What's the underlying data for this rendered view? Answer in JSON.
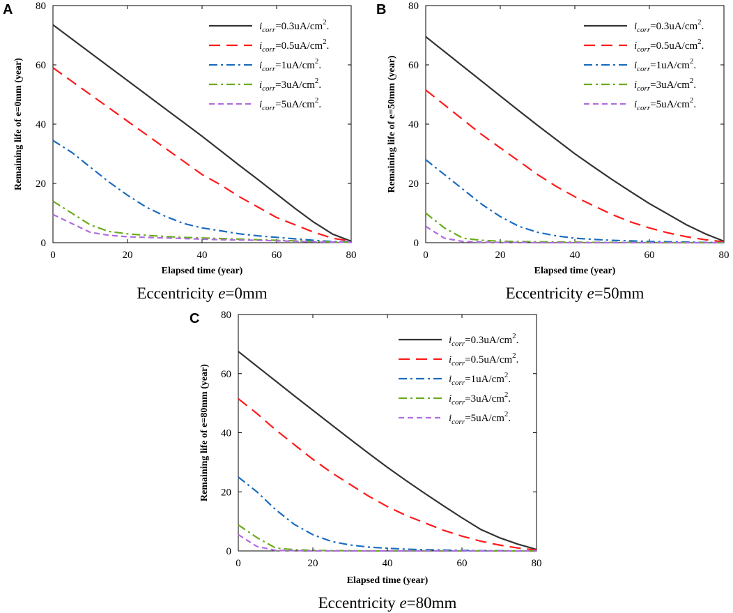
{
  "chart_data": [
    {
      "type": "line",
      "panel": "A",
      "caption_prefix": "Eccentricity ",
      "caption_var": "e",
      "caption_suffix": "=0mm",
      "xlabel": "Elapsed time (year)",
      "ylabel": "Remaining life of e=0mm (year)",
      "xlim": [
        0,
        80
      ],
      "ylim": [
        0,
        80
      ],
      "xticks": [
        "0",
        "20",
        "40",
        "60",
        "80"
      ],
      "yticks": [
        "0",
        "20",
        "40",
        "60",
        "80"
      ],
      "x": [
        0,
        5,
        10,
        15,
        20,
        25,
        30,
        35,
        40,
        45,
        50,
        55,
        60,
        65,
        70,
        75,
        80
      ],
      "series": [
        {
          "name": "0.3",
          "legend_sub": "corr",
          "legend_val": "=0.3uA/cm",
          "legend_sup": "2",
          "legend_end": ".",
          "color": "#333333",
          "dash": "solid",
          "values": [
            73.5,
            68.8,
            64.1,
            59.4,
            54.7,
            50.0,
            45.3,
            40.6,
            35.9,
            31.0,
            26.1,
            21.3,
            16.4,
            11.5,
            6.9,
            2.9,
            0.5
          ]
        },
        {
          "name": "0.5",
          "legend_sub": "corr",
          "legend_val": "=0.5uA/cm",
          "legend_sup": "2",
          "legend_end": ".",
          "color": "#ff1a1a",
          "dash": "long",
          "values": [
            59.0,
            54.5,
            50.0,
            45.5,
            41.0,
            36.5,
            32.0,
            27.5,
            23.0,
            19.5,
            15.5,
            12.0,
            8.5,
            6.0,
            3.5,
            1.5,
            0.5
          ]
        },
        {
          "name": "1",
          "legend_sub": "corr",
          "legend_val": "=1uA/cm",
          "legend_sup": "2",
          "legend_end": ".",
          "color": "#1a6bbf",
          "dash": "dashdot",
          "values": [
            34.5,
            30.5,
            25.5,
            20.5,
            16.0,
            12.0,
            9.0,
            6.5,
            5.0,
            4.0,
            3.0,
            2.3,
            1.8,
            1.3,
            0.8,
            0.4,
            0.2
          ]
        },
        {
          "name": "3",
          "legend_sub": "corr",
          "legend_val": "=3uA/cm",
          "legend_sup": "2",
          "legend_end": ".",
          "color": "#6aaa1e",
          "dash": "dashdot",
          "values": [
            14.0,
            10.0,
            6.0,
            3.8,
            3.0,
            2.5,
            2.1,
            1.8,
            1.6,
            1.4,
            1.2,
            1.0,
            0.8,
            0.6,
            0.4,
            0.2,
            0.1
          ]
        },
        {
          "name": "5",
          "legend_sub": "corr",
          "legend_val": "=5uA/cm",
          "legend_sup": "2",
          "legend_end": ".",
          "color": "#b06ce0",
          "dash": "short",
          "values": [
            9.5,
            6.5,
            3.5,
            2.5,
            2.0,
            1.8,
            1.6,
            1.4,
            1.2,
            1.0,
            0.9,
            0.8,
            0.6,
            0.5,
            0.3,
            0.2,
            0.1
          ]
        }
      ]
    },
    {
      "type": "line",
      "panel": "B",
      "caption_prefix": "Eccentricity ",
      "caption_var": "e",
      "caption_suffix": "=50mm",
      "xlabel": "Elapsed time (year)",
      "ylabel": "Remaining life of e=50mm (year)",
      "xlim": [
        0,
        80
      ],
      "ylim": [
        0,
        80
      ],
      "xticks": [
        "0",
        "20",
        "40",
        "60",
        "80"
      ],
      "yticks": [
        "0",
        "20",
        "40",
        "60",
        "80"
      ],
      "x": [
        0,
        5,
        10,
        15,
        20,
        25,
        30,
        35,
        40,
        45,
        50,
        55,
        60,
        65,
        70,
        75,
        80
      ],
      "series": [
        {
          "name": "0.3",
          "legend_sub": "corr",
          "legend_val": "=0.3uA/cm",
          "legend_sup": "2",
          "legend_end": ".",
          "color": "#333333",
          "dash": "solid",
          "values": [
            69.5,
            64.5,
            59.5,
            54.5,
            49.5,
            44.5,
            39.6,
            34.8,
            30.0,
            25.6,
            21.3,
            17.2,
            13.2,
            9.6,
            6.0,
            3.0,
            0.5
          ]
        },
        {
          "name": "0.5",
          "legend_sub": "corr",
          "legend_val": "=0.5uA/cm",
          "legend_sup": "2",
          "legend_end": ".",
          "color": "#ff1a1a",
          "dash": "long",
          "values": [
            51.5,
            46.5,
            41.5,
            36.5,
            32.0,
            27.5,
            23.0,
            19.0,
            15.5,
            12.5,
            9.5,
            7.0,
            5.0,
            3.3,
            2.0,
            1.0,
            0.3
          ]
        },
        {
          "name": "1",
          "legend_sub": "corr",
          "legend_val": "=1uA/cm",
          "legend_sup": "2",
          "legend_end": ".",
          "color": "#1a6bbf",
          "dash": "dashdot",
          "values": [
            28.0,
            23.0,
            18.0,
            13.0,
            8.8,
            5.5,
            3.5,
            2.3,
            1.5,
            1.1,
            0.8,
            0.6,
            0.4,
            0.3,
            0.2,
            0.1,
            0.0
          ]
        },
        {
          "name": "3",
          "legend_sub": "corr",
          "legend_val": "=3uA/cm",
          "legend_sup": "2",
          "legend_end": ".",
          "color": "#6aaa1e",
          "dash": "dashdot",
          "values": [
            10.0,
            5.0,
            1.5,
            0.8,
            0.5,
            0.4,
            0.3,
            0.2,
            0.2,
            0.1,
            0.1,
            0.1,
            0.0,
            0.0,
            0.0,
            0.0,
            0.0
          ]
        },
        {
          "name": "5",
          "legend_sub": "corr",
          "legend_val": "=5uA/cm",
          "legend_sup": "2",
          "legend_end": ".",
          "color": "#b06ce0",
          "dash": "short",
          "values": [
            5.5,
            1.5,
            0.4,
            0.2,
            0.1,
            0.1,
            0.0,
            0.0,
            0.0,
            0.0,
            0.0,
            0.0,
            0.0,
            0.0,
            0.0,
            0.0,
            0.0
          ]
        }
      ]
    },
    {
      "type": "line",
      "panel": "C",
      "caption_prefix": "Eccentricity ",
      "caption_var": "e",
      "caption_suffix": "=80mm",
      "xlabel": "Elapsed time (year)",
      "ylabel": "Remaining life of e=80mm (year)",
      "xlim": [
        0,
        80
      ],
      "ylim": [
        0,
        80
      ],
      "xticks": [
        "0",
        "20",
        "40",
        "60",
        "80"
      ],
      "yticks": [
        "0",
        "20",
        "40",
        "60",
        "80"
      ],
      "x": [
        0,
        5,
        10,
        15,
        20,
        25,
        30,
        35,
        40,
        45,
        50,
        55,
        60,
        65,
        70,
        75,
        80
      ],
      "series": [
        {
          "name": "0.3",
          "legend_sub": "corr",
          "legend_val": "=0.3uA/cm",
          "legend_sup": "2",
          "legend_end": ".",
          "color": "#333333",
          "dash": "solid",
          "values": [
            67.5,
            62.5,
            57.5,
            52.5,
            47.6,
            42.7,
            37.8,
            33.0,
            28.3,
            23.8,
            19.5,
            15.3,
            11.2,
            7.3,
            4.5,
            2.3,
            0.5
          ]
        },
        {
          "name": "0.5",
          "legend_sub": "corr",
          "legend_val": "=0.5uA/cm",
          "legend_sup": "2",
          "legend_end": ".",
          "color": "#ff1a1a",
          "dash": "long",
          "values": [
            51.5,
            46.5,
            41.0,
            36.0,
            31.0,
            26.5,
            22.5,
            18.5,
            15.0,
            12.0,
            9.5,
            7.0,
            5.0,
            3.3,
            2.0,
            1.0,
            0.3
          ]
        },
        {
          "name": "1",
          "legend_sub": "corr",
          "legend_val": "=1uA/cm",
          "legend_sup": "2",
          "legend_end": ".",
          "color": "#1a6bbf",
          "dash": "dashdot",
          "values": [
            25.0,
            20.0,
            14.0,
            9.0,
            5.5,
            3.2,
            2.0,
            1.3,
            0.9,
            0.6,
            0.4,
            0.3,
            0.2,
            0.1,
            0.1,
            0.0,
            0.0
          ]
        },
        {
          "name": "3",
          "legend_sub": "corr",
          "legend_val": "=3uA/cm",
          "legend_sup": "2",
          "legend_end": ".",
          "color": "#6aaa1e",
          "dash": "dashdot",
          "values": [
            8.8,
            4.5,
            1.0,
            0.4,
            0.2,
            0.1,
            0.1,
            0.0,
            0.0,
            0.0,
            0.0,
            0.0,
            0.0,
            0.0,
            0.0,
            0.0,
            0.0
          ]
        },
        {
          "name": "5",
          "legend_sub": "corr",
          "legend_val": "=5uA/cm",
          "legend_sup": "2",
          "legend_end": ".",
          "color": "#b06ce0",
          "dash": "short",
          "values": [
            5.5,
            1.5,
            0.2,
            0.1,
            0.0,
            0.0,
            0.0,
            0.0,
            0.0,
            0.0,
            0.0,
            0.0,
            0.0,
            0.0,
            0.0,
            0.0,
            0.0
          ]
        }
      ]
    }
  ],
  "legend_prefix": "i"
}
